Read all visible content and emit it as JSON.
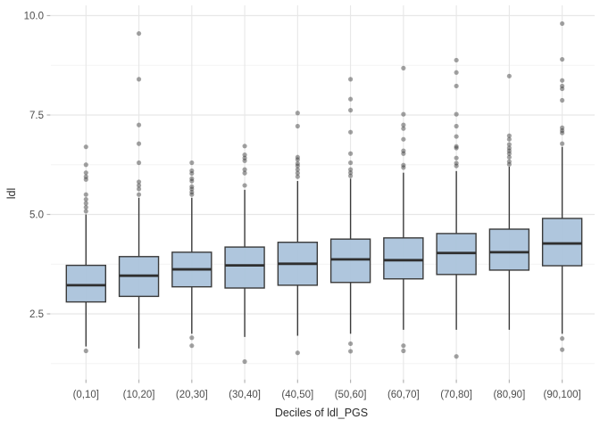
{
  "chart_data": {
    "type": "boxplot",
    "title": "",
    "xlabel": "Deciles of ldl_PGS",
    "ylabel": "ldl",
    "ylim": [
      0.86,
      10.26
    ],
    "y_major_ticks": [
      2.5,
      5.0,
      7.5,
      10.0
    ],
    "y_minor_ticks": [
      1.25,
      3.75,
      6.25,
      8.75
    ],
    "y_tick_labels": [
      "2.5",
      "5.0",
      "7.5",
      "10.0"
    ],
    "grid": true,
    "legend": false,
    "categories": [
      "(0,10]",
      "(10,20]",
      "(20,30]",
      "(30,40]",
      "(40,50]",
      "(50,60]",
      "(60,70]",
      "(70,80]",
      "(80,90]",
      "(90,100]"
    ],
    "boxes": [
      {
        "category": "(0,10]",
        "whisker_low": 1.68,
        "q1": 2.8,
        "median": 3.22,
        "q3": 3.72,
        "whisker_high": 5.0,
        "outliers": [
          6.7,
          6.25,
          6.05,
          5.95,
          5.88,
          5.5,
          5.38,
          5.28,
          5.18,
          5.08,
          1.57
        ]
      },
      {
        "category": "(10,20]",
        "whisker_low": 1.63,
        "q1": 2.94,
        "median": 3.46,
        "q3": 3.94,
        "whisker_high": 5.42,
        "outliers": [
          9.55,
          8.4,
          7.25,
          6.78,
          6.3,
          5.82,
          5.73,
          5.64,
          5.5
        ]
      },
      {
        "category": "(20,30]",
        "whisker_low": 2.0,
        "q1": 3.18,
        "median": 3.62,
        "q3": 4.05,
        "whisker_high": 5.42,
        "outliers": [
          6.3,
          6.1,
          6.03,
          5.9,
          5.84,
          5.7,
          5.64,
          5.56,
          5.5,
          1.9,
          1.7
        ]
      },
      {
        "category": "(30,40]",
        "whisker_low": 1.92,
        "q1": 3.15,
        "median": 3.72,
        "q3": 4.18,
        "whisker_high": 5.62,
        "outliers": [
          6.72,
          6.5,
          6.42,
          6.35,
          6.13,
          6.04,
          5.73,
          1.3
        ]
      },
      {
        "category": "(40,50]",
        "whisker_low": 1.95,
        "q1": 3.22,
        "median": 3.76,
        "q3": 4.3,
        "whisker_high": 5.84,
        "outliers": [
          7.55,
          7.22,
          6.44,
          6.38,
          6.28,
          6.22,
          6.13,
          6.04,
          5.95,
          1.52
        ]
      },
      {
        "category": "(50,60]",
        "whisker_low": 2.0,
        "q1": 3.29,
        "median": 3.87,
        "q3": 4.38,
        "whisker_high": 5.9,
        "outliers": [
          8.4,
          7.9,
          7.62,
          7.07,
          6.53,
          6.3,
          6.13,
          6.05,
          5.97,
          1.75,
          1.56
        ]
      },
      {
        "category": "(60,70]",
        "whisker_low": 2.1,
        "q1": 3.38,
        "median": 3.85,
        "q3": 4.41,
        "whisker_high": 6.05,
        "outliers": [
          8.68,
          7.52,
          7.25,
          7.16,
          6.89,
          6.6,
          6.53,
          6.24,
          6.18,
          1.7,
          1.57
        ]
      },
      {
        "category": "(70,80]",
        "whisker_low": 2.1,
        "q1": 3.49,
        "median": 4.03,
        "q3": 4.52,
        "whisker_high": 6.09,
        "outliers": [
          8.88,
          8.57,
          8.23,
          7.52,
          7.22,
          6.96,
          6.71,
          6.67,
          6.42,
          6.29,
          6.22,
          1.43
        ]
      },
      {
        "category": "(80,90]",
        "whisker_low": 2.1,
        "q1": 3.6,
        "median": 4.05,
        "q3": 4.63,
        "whisker_high": 6.2,
        "outliers": [
          8.48,
          6.98,
          6.89,
          6.76,
          6.67,
          6.6,
          6.53,
          6.44,
          6.33,
          6.26
        ]
      },
      {
        "category": "(90,100]",
        "whisker_low": 2.0,
        "q1": 3.71,
        "median": 4.27,
        "q3": 4.9,
        "whisker_high": 6.7,
        "outliers": [
          9.8,
          8.9,
          8.37,
          8.23,
          8.16,
          7.87,
          7.18,
          7.11,
          7.05,
          6.78,
          1.88,
          1.6
        ]
      }
    ],
    "colors": {
      "background": "#ffffff",
      "box_fill": "#a9c2da",
      "box_stroke": "#3a3a3a",
      "median_stroke": "#2f2f2f",
      "outlier_fill_rgba": "rgba(50,50,50,0.45)",
      "grid_major": "#e7e7e7",
      "grid_minor": "#f3f3f3",
      "axis_tick": "#b3b3b3",
      "tick_label": "#4d4d4d",
      "axis_title": "#2b2b2b"
    }
  }
}
